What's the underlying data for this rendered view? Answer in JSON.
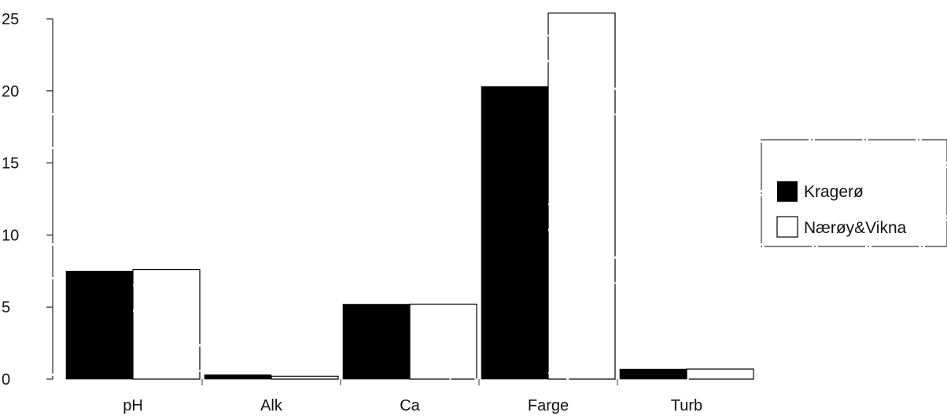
{
  "chart_data": {
    "type": "bar",
    "categories": [
      "pH",
      "Alk",
      "Ca",
      "Farge",
      "Turb"
    ],
    "series": [
      {
        "name": "Kragerø",
        "values": [
          7.5,
          0.3,
          5.2,
          20.3,
          0.7
        ],
        "color": "#000000"
      },
      {
        "name": "Nærøy&Vikna",
        "values": [
          7.6,
          0.2,
          5.2,
          25.4,
          0.7
        ],
        "color": "#ffffff"
      }
    ],
    "yticks": [
      0,
      5,
      10,
      15,
      20,
      25
    ],
    "ylim": [
      0,
      25
    ],
    "grid": false,
    "legend_position": "right"
  }
}
